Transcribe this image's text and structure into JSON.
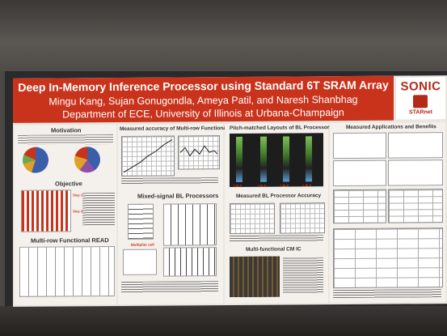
{
  "poster": {
    "title": "Deep In-Memory Inference Processor using Standard 6T SRAM Array",
    "authors": "Mingu Kang, Sujan Gonugondla, Ameya Patil, and Naresh Shanbhag",
    "department": "Department of ECE, University of Illinois at Urbana-Champaign",
    "logo": {
      "text": "SONIC",
      "sub": "STARnet"
    }
  },
  "sections": {
    "motivation": "Motivation",
    "objective": "Objective",
    "multirow": "Multi-row Functional READ",
    "measured_accuracy": "Measured accuracy of Multi-row Functional READ",
    "mixed_signal": "Mixed-signal BL Processors",
    "pitch_matched": "Pitch-matched Layouts of BL Processors",
    "bl_accuracy": "Measured BL Processor Accuracy",
    "cm_ic": "Multi-functional CM IC",
    "applications": "Measured Applications and Benefits"
  },
  "labels": {
    "multiplier_cell": "Multiplier cell",
    "layout_strip_1": "1 BLP",
    "layout_strip_2": "1 BLP",
    "layout_strip_3": "1 BLP",
    "layout_strip_4": "1 BLP"
  },
  "colors": {
    "header": "#c9331c",
    "poster_bg": "#e9e5df",
    "accent_blue": "#3a5fa8"
  }
}
